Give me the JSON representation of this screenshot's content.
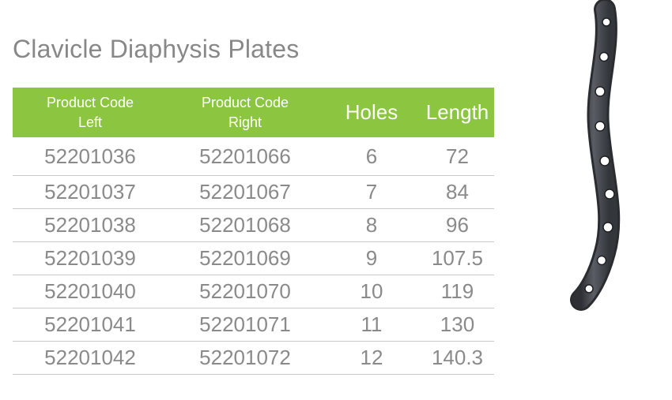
{
  "title": "Clavicle Diaphysis Plates",
  "headers": {
    "code_left_line1": "Product Code",
    "code_left_line2": "Left",
    "code_right_line1": "Product Code",
    "code_right_line2": "Right",
    "holes": "Holes",
    "length": "Length"
  },
  "rows": [
    {
      "left": "52201036",
      "right": "52201066",
      "holes": "6",
      "length": "72"
    },
    {
      "left": "52201037",
      "right": "52201067",
      "holes": "7",
      "length": "84"
    },
    {
      "left": "52201038",
      "right": "52201068",
      "holes": "8",
      "length": "96"
    },
    {
      "left": "52201039",
      "right": "52201069",
      "holes": "9",
      "length": "107.5"
    },
    {
      "left": "52201040",
      "right": "52201070",
      "holes": "10",
      "length": "119"
    },
    {
      "left": "52201041",
      "right": "52201071",
      "holes": "11",
      "length": "130"
    },
    {
      "left": "52201042",
      "right": "52201072",
      "holes": "12",
      "length": "140.3"
    }
  ],
  "colors": {
    "header_bg": "#8cc540",
    "title_text": "#888888",
    "body_text": "#8a8a8a",
    "plate": "#4a4d52"
  },
  "icons": {
    "plate_image": "clavicle-plate-image"
  }
}
